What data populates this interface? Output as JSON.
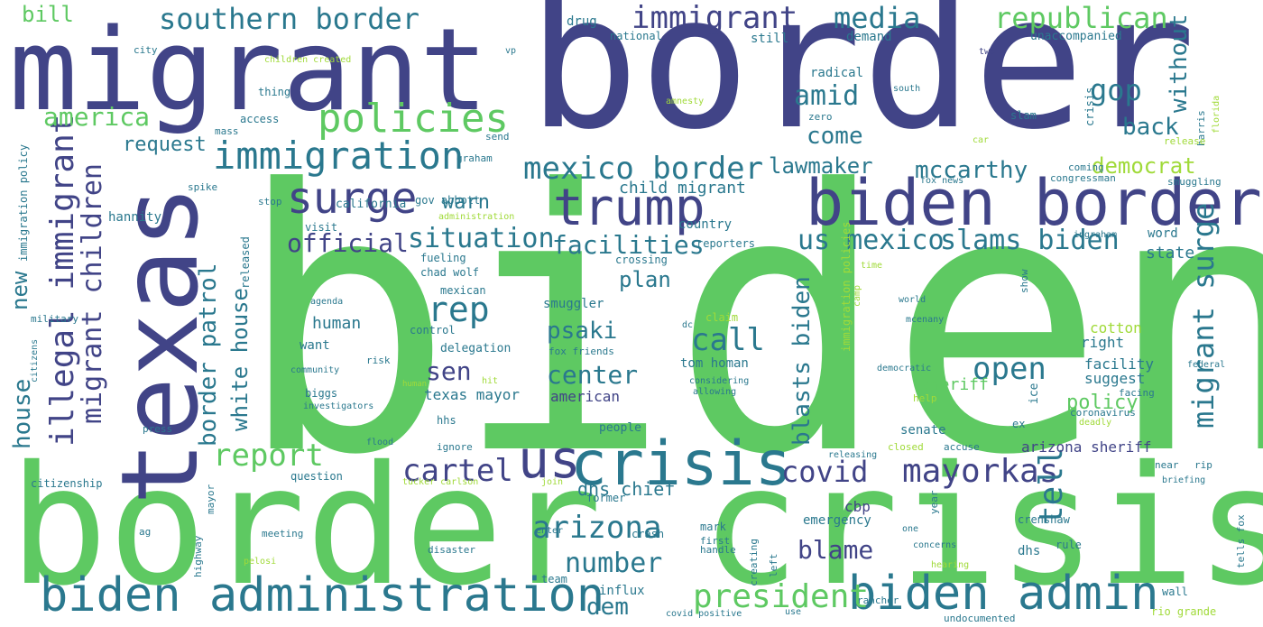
{
  "colors": {
    "navy": "#414487",
    "teal": "#2a788e",
    "green": "#5ec962",
    "light": "#a0da39",
    "pale": "#b6e3a0"
  },
  "words": [
    {
      "text": "biden",
      "color": "#5ec962"
    },
    {
      "text": "border",
      "color": "#414487"
    },
    {
      "text": "border crisis",
      "color": "#5ec962"
    },
    {
      "text": "migrant",
      "color": "#414487"
    },
    {
      "text": "texas",
      "color": "#414487"
    },
    {
      "text": "biden border",
      "color": "#414487"
    },
    {
      "text": "crisis",
      "color": "#2a788e"
    },
    {
      "text": "trump",
      "color": "#414487"
    },
    {
      "text": "us",
      "color": "#414487"
    },
    {
      "text": "biden administration",
      "color": "#2a788e"
    },
    {
      "text": "biden admin",
      "color": "#2a788e"
    },
    {
      "text": "immigration",
      "color": "#2a788e"
    },
    {
      "text": "surge",
      "color": "#414487"
    },
    {
      "text": "policies",
      "color": "#5ec962"
    },
    {
      "text": "southern border",
      "color": "#2a788e"
    },
    {
      "text": "immigrant",
      "color": "#414487"
    },
    {
      "text": "republican",
      "color": "#5ec962"
    },
    {
      "text": "media",
      "color": "#2a788e"
    },
    {
      "text": "mexico border",
      "color": "#2a788e"
    },
    {
      "text": "illegal immigrant",
      "color": "#414487"
    },
    {
      "text": "migrant children",
      "color": "#414487"
    },
    {
      "text": "president",
      "color": "#5ec962"
    },
    {
      "text": "mayorkas",
      "color": "#414487"
    },
    {
      "text": "report",
      "color": "#5ec962"
    },
    {
      "text": "arizona",
      "color": "#2a788e"
    },
    {
      "text": "cartel",
      "color": "#414487"
    },
    {
      "text": "rep",
      "color": "#2a788e"
    },
    {
      "text": "covid",
      "color": "#414487"
    },
    {
      "text": "call",
      "color": "#2a788e"
    },
    {
      "text": "open",
      "color": "#2a788e"
    },
    {
      "text": "tell",
      "color": "#2a788e"
    },
    {
      "text": "migrant surge",
      "color": "#2a788e"
    },
    {
      "text": "official",
      "color": "#414487"
    },
    {
      "text": "situation",
      "color": "#2a788e"
    },
    {
      "text": "facilities",
      "color": "#2a788e"
    },
    {
      "text": "us mexico",
      "color": "#2a788e"
    },
    {
      "text": "slams biden",
      "color": "#2a788e"
    },
    {
      "text": "border patrol",
      "color": "#2a788e"
    },
    {
      "text": "white house",
      "color": "#2a788e"
    },
    {
      "text": "blasts biden",
      "color": "#2a788e"
    },
    {
      "text": "america",
      "color": "#5ec962"
    },
    {
      "text": "gop",
      "color": "#2a788e"
    },
    {
      "text": "amid",
      "color": "#2a788e"
    },
    {
      "text": "come",
      "color": "#2a788e"
    },
    {
      "text": "back",
      "color": "#2a788e"
    },
    {
      "text": "without",
      "color": "#2a788e"
    },
    {
      "text": "lawmaker",
      "color": "#2a788e"
    },
    {
      "text": "mccarthy",
      "color": "#2a788e"
    },
    {
      "text": "democrat",
      "color": "#a0da39"
    },
    {
      "text": "request",
      "color": "#2a788e"
    },
    {
      "text": "warn",
      "color": "#2a788e"
    },
    {
      "text": "child migrant",
      "color": "#2a788e"
    },
    {
      "text": "plan",
      "color": "#2a788e"
    },
    {
      "text": "psaki",
      "color": "#2a788e"
    },
    {
      "text": "sen",
      "color": "#414487"
    },
    {
      "text": "center",
      "color": "#2a788e"
    },
    {
      "text": "dem",
      "color": "#2a788e"
    },
    {
      "text": "number",
      "color": "#2a788e"
    },
    {
      "text": "blame",
      "color": "#2a788e"
    },
    {
      "text": "dhs chief",
      "color": "#2a788e"
    },
    {
      "text": "house",
      "color": "#2a788e"
    },
    {
      "text": "new",
      "color": "#2a788e"
    },
    {
      "text": "bill",
      "color": "#5ec962"
    },
    {
      "text": "policy",
      "color": "#5ec962"
    },
    {
      "text": "human",
      "color": "#2a788e"
    },
    {
      "text": "want",
      "color": "#2a788e"
    },
    {
      "text": "arizona sheriff",
      "color": "#414487"
    },
    {
      "text": "sheriff",
      "color": "#5ec962"
    },
    {
      "text": "cotton",
      "color": "#a0da39"
    },
    {
      "text": "right",
      "color": "#2a788e"
    },
    {
      "text": "facility",
      "color": "#2a788e"
    },
    {
      "text": "suggest",
      "color": "#2a788e"
    },
    {
      "text": "state",
      "color": "#2a788e"
    },
    {
      "text": "word",
      "color": "#2a788e"
    },
    {
      "text": "texas mayor",
      "color": "#2a788e"
    },
    {
      "text": "american",
      "color": "#414487"
    },
    {
      "text": "tom homan",
      "color": "#2a788e"
    },
    {
      "text": "country",
      "color": "#2a788e"
    },
    {
      "text": "senate",
      "color": "#2a788e"
    },
    {
      "text": "reporters",
      "color": "#2a788e"
    },
    {
      "text": "hannity",
      "color": "#2a788e"
    },
    {
      "text": "drug",
      "color": "#2a788e"
    },
    {
      "text": "national",
      "color": "#2a788e"
    },
    {
      "text": "vp",
      "color": "#2a788e"
    },
    {
      "text": "still",
      "color": "#2a788e"
    },
    {
      "text": "demand",
      "color": "#2a788e"
    },
    {
      "text": "unaccompanied",
      "color": "#2a788e"
    },
    {
      "text": "two",
      "color": "#414487"
    },
    {
      "text": "radical",
      "color": "#2a788e"
    },
    {
      "text": "south",
      "color": "#2a788e"
    },
    {
      "text": "zero",
      "color": "#2a788e"
    },
    {
      "text": "slam",
      "color": "#2a788e"
    },
    {
      "text": "harris",
      "color": "#2a788e"
    },
    {
      "text": "florida",
      "color": "#a0da39"
    },
    {
      "text": "release",
      "color": "#a0da39"
    },
    {
      "text": "crisis",
      "color": "#2a788e"
    },
    {
      "text": "amnesty",
      "color": "#a0da39"
    },
    {
      "text": "children created",
      "color": "#a0da39"
    },
    {
      "text": "city",
      "color": "#2a788e"
    },
    {
      "text": "thing",
      "color": "#2a788e"
    },
    {
      "text": "access",
      "color": "#2a788e"
    },
    {
      "text": "mass",
      "color": "#2a788e"
    },
    {
      "text": "send",
      "color": "#2a788e"
    },
    {
      "text": "car",
      "color": "#a0da39"
    },
    {
      "text": "graham",
      "color": "#2a788e"
    },
    {
      "text": "stop",
      "color": "#2a788e"
    },
    {
      "text": "california",
      "color": "#2a788e"
    },
    {
      "text": "gov abbott",
      "color": "#2a788e"
    },
    {
      "text": "administration",
      "color": "#a0da39"
    },
    {
      "text": "chad wolf",
      "color": "#2a788e"
    },
    {
      "text": "fueling",
      "color": "#2a788e"
    },
    {
      "text": "crossing",
      "color": "#2a788e"
    },
    {
      "text": "visit",
      "color": "#2a788e"
    },
    {
      "text": "spike",
      "color": "#2a788e"
    },
    {
      "text": "released",
      "color": "#2a788e"
    },
    {
      "text": "mexican",
      "color": "#2a788e"
    },
    {
      "text": "smuggler",
      "color": "#2a788e"
    },
    {
      "text": "control",
      "color": "#2a788e"
    },
    {
      "text": "delegation",
      "color": "#2a788e"
    },
    {
      "text": "community",
      "color": "#2a788e"
    },
    {
      "text": "risk",
      "color": "#2a788e"
    },
    {
      "text": "biggs",
      "color": "#2a788e"
    },
    {
      "text": "agenda",
      "color": "#2a788e"
    },
    {
      "text": "military",
      "color": "#2a788e"
    },
    {
      "text": "immigration policy",
      "color": "#2a788e"
    },
    {
      "text": "citizens",
      "color": "#2a788e"
    },
    {
      "text": "press",
      "color": "#2a788e"
    },
    {
      "text": "fox friends",
      "color": "#2a788e"
    },
    {
      "text": "fox news",
      "color": "#2a788e"
    },
    {
      "text": "people",
      "color": "#2a788e"
    },
    {
      "text": "hhs",
      "color": "#2a788e"
    },
    {
      "text": "ignore",
      "color": "#2a788e"
    },
    {
      "text": "flood",
      "color": "#2a788e"
    },
    {
      "text": "investigators",
      "color": "#2a788e"
    },
    {
      "text": "citizenship",
      "color": "#2a788e"
    },
    {
      "text": "question",
      "color": "#2a788e"
    },
    {
      "text": "tucker carlson",
      "color": "#a0da39"
    },
    {
      "text": "join",
      "color": "#a0da39"
    },
    {
      "text": "mayor",
      "color": "#2a788e"
    },
    {
      "text": "highway",
      "color": "#2a788e"
    },
    {
      "text": "ag",
      "color": "#2a788e"
    },
    {
      "text": "meeting",
      "color": "#2a788e"
    },
    {
      "text": "pelosi",
      "color": "#a0da39"
    },
    {
      "text": "disaster",
      "color": "#2a788e"
    },
    {
      "text": "enter",
      "color": "#2a788e"
    },
    {
      "text": "team",
      "color": "#2a788e"
    },
    {
      "text": "influx",
      "color": "#2a788e"
    },
    {
      "text": "covid positive",
      "color": "#2a788e"
    },
    {
      "text": "use",
      "color": "#2a788e"
    },
    {
      "text": "crash",
      "color": "#2a788e"
    },
    {
      "text": "former",
      "color": "#2a788e"
    },
    {
      "text": "mark",
      "color": "#2a788e"
    },
    {
      "text": "first",
      "color": "#2a788e"
    },
    {
      "text": "handle",
      "color": "#2a788e"
    },
    {
      "text": "creating",
      "color": "#2a788e"
    },
    {
      "text": "left",
      "color": "#2a788e"
    },
    {
      "text": "emergency",
      "color": "#2a788e"
    },
    {
      "text": "cbp",
      "color": "#414487"
    },
    {
      "text": "one",
      "color": "#2a788e"
    },
    {
      "text": "concerns",
      "color": "#2a788e"
    },
    {
      "text": "year",
      "color": "#2a788e"
    },
    {
      "text": "crenshaw",
      "color": "#2a788e"
    },
    {
      "text": "rule",
      "color": "#2a788e"
    },
    {
      "text": "hearing",
      "color": "#a0da39"
    },
    {
      "text": "dhs",
      "color": "#2a788e"
    },
    {
      "text": "rancher",
      "color": "#2a788e"
    },
    {
      "text": "wall",
      "color": "#2a788e"
    },
    {
      "text": "rio grande",
      "color": "#a0da39"
    },
    {
      "text": "undocumented",
      "color": "#2a788e"
    },
    {
      "text": "near",
      "color": "#2a788e"
    },
    {
      "text": "rip",
      "color": "#2a788e"
    },
    {
      "text": "briefing",
      "color": "#2a788e"
    },
    {
      "text": "tells fox",
      "color": "#2a788e"
    },
    {
      "text": "ex",
      "color": "#2a788e"
    },
    {
      "text": "ice",
      "color": "#2a788e"
    },
    {
      "text": "closed",
      "color": "#a0da39"
    },
    {
      "text": "accuse",
      "color": "#2a788e"
    },
    {
      "text": "deadly",
      "color": "#a0da39"
    },
    {
      "text": "coronavirus",
      "color": "#2a788e"
    },
    {
      "text": "facing",
      "color": "#2a788e"
    },
    {
      "text": "help",
      "color": "#a0da39"
    },
    {
      "text": "federal",
      "color": "#2a788e"
    },
    {
      "text": "democratic",
      "color": "#2a788e"
    },
    {
      "text": "world",
      "color": "#2a788e"
    },
    {
      "text": "mcenany",
      "color": "#2a788e"
    },
    {
      "text": "show",
      "color": "#2a788e"
    },
    {
      "text": "releasing",
      "color": "#2a788e"
    },
    {
      "text": "considering",
      "color": "#2a788e"
    },
    {
      "text": "allowing",
      "color": "#2a788e"
    },
    {
      "text": "claim",
      "color": "#a0da39"
    },
    {
      "text": "dc",
      "color": "#2a788e"
    },
    {
      "text": "immigration policies",
      "color": "#a0da39"
    },
    {
      "text": "time",
      "color": "#a0da39"
    },
    {
      "text": "camp",
      "color": "#a0da39"
    },
    {
      "text": "hit",
      "color": "#a0da39"
    },
    {
      "text": "human",
      "color": "#a0da39"
    },
    {
      "text": "ingraham",
      "color": "#2a788e"
    },
    {
      "text": "coming",
      "color": "#2a788e"
    },
    {
      "text": "congressman",
      "color": "#2a788e"
    },
    {
      "text": "smuggling",
      "color": "#2a788e"
    }
  ]
}
